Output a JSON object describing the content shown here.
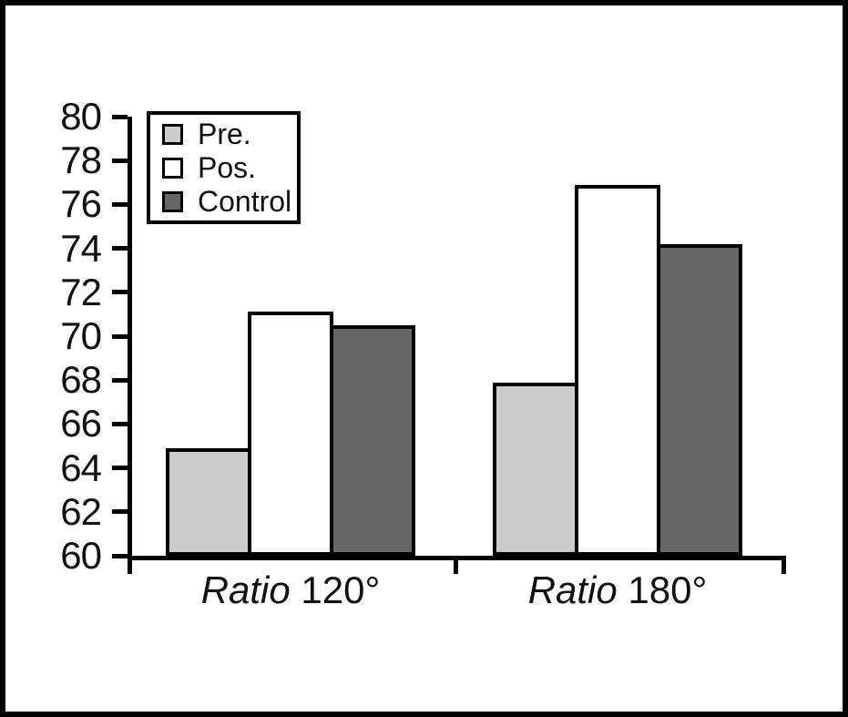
{
  "figure": {
    "background": "#ffffff",
    "frame_color": "#000000",
    "text_color": "#111111"
  },
  "chart_data": {
    "type": "bar",
    "title": "",
    "xlabel": "",
    "ylabel": "",
    "categories": [
      "Ratio 120°",
      "Ratio 180°"
    ],
    "category_italic_word": "Ratio",
    "series": [
      {
        "name": "Pre.",
        "color": "#cccccc",
        "values": [
          64.9,
          67.9
        ]
      },
      {
        "name": "Pos.",
        "color": "#ffffff",
        "values": [
          71.1,
          76.9
        ]
      },
      {
        "name": "Control",
        "color": "#666666",
        "values": [
          70.5,
          74.2
        ]
      }
    ],
    "ylim": [
      60,
      80
    ],
    "yticks": [
      60,
      62,
      64,
      66,
      68,
      70,
      72,
      74,
      76,
      78,
      80
    ],
    "grid": false,
    "bar_edge_color": "#000000",
    "legend": {
      "position": "top-left",
      "entries": [
        "Pre.",
        "Pos.",
        "Control"
      ]
    }
  }
}
